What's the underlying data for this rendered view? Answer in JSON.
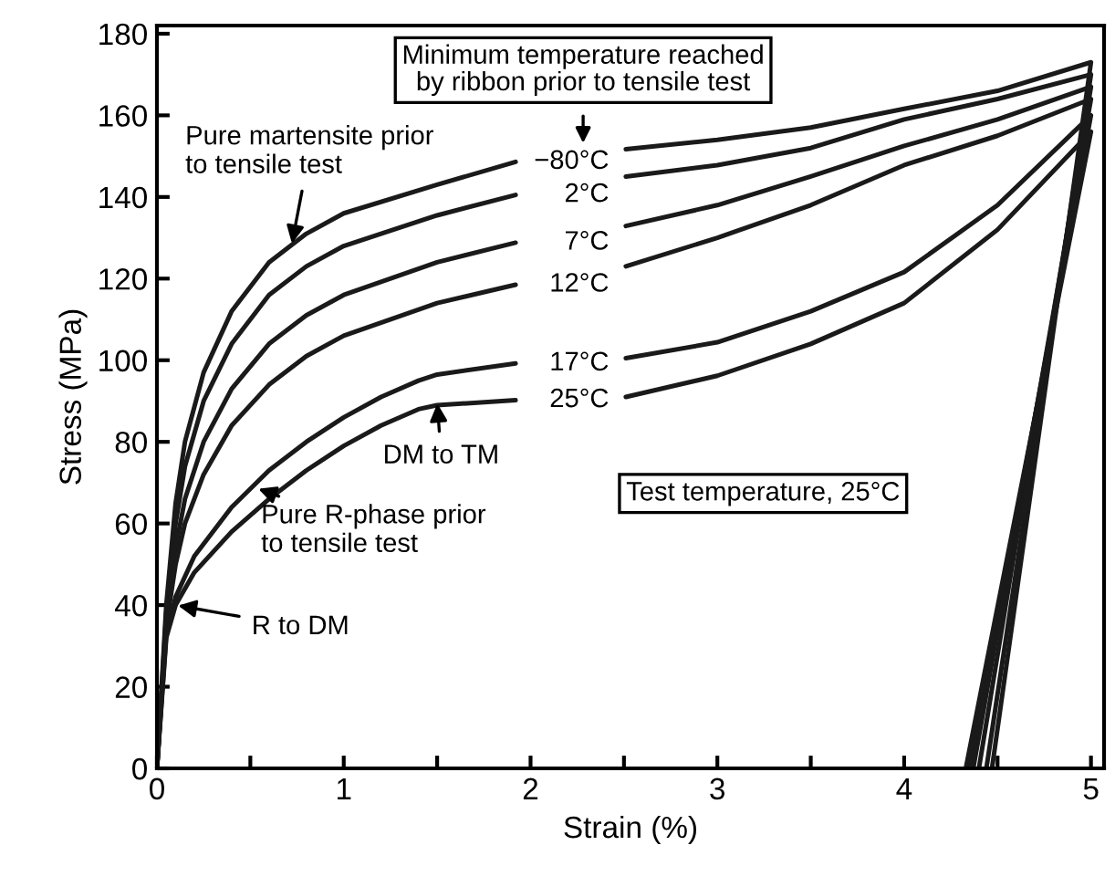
{
  "chart_data": {
    "type": "line",
    "xlabel": "Strain (%)",
    "ylabel": "Stress (MPa)",
    "xlim": [
      0,
      5.07
    ],
    "ylim": [
      0,
      182
    ],
    "xticks": [
      0,
      {
        "value": 0.5,
        "label": null
      },
      1,
      {
        "value": 1.5,
        "label": null
      },
      2,
      {
        "value": 2.5,
        "label": null
      },
      3,
      {
        "value": 3.5,
        "label": null
      },
      4,
      {
        "value": 4.5,
        "label": null
      },
      5
    ],
    "yticks": [
      0,
      20,
      40,
      60,
      80,
      100,
      120,
      140,
      160,
      180
    ],
    "grid": false,
    "legend": false,
    "marker": "none",
    "line_style": "solid",
    "series": [
      {
        "name": "−80°C",
        "color": "#1a1a1a",
        "x": [
          0,
          0.05,
          0.1,
          0.15,
          0.25,
          0.4,
          0.6,
          0.8,
          1.0,
          1.5,
          1.92,
          2.2,
          2.51,
          3,
          3.5,
          4,
          4.5,
          5,
          4.47
        ],
        "values": [
          0,
          40,
          65,
          80,
          97,
          112,
          124,
          131,
          136,
          143,
          148.6,
          null,
          151.7,
          154,
          157,
          161.6,
          166,
          173,
          0
        ]
      },
      {
        "name": "2°C",
        "color": "#1a1a1a",
        "x": [
          0,
          0.05,
          0.1,
          0.15,
          0.25,
          0.4,
          0.6,
          0.8,
          1.0,
          1.5,
          1.92,
          2.2,
          2.51,
          3,
          3.5,
          4,
          4.5,
          5,
          4.44
        ],
        "values": [
          0,
          38,
          60,
          74,
          90,
          104,
          116,
          123,
          128,
          135.5,
          140.5,
          null,
          145,
          147.8,
          152,
          159,
          164,
          170,
          0
        ]
      },
      {
        "name": "7°C",
        "color": "#1a1a1a",
        "x": [
          0,
          0.05,
          0.1,
          0.15,
          0.25,
          0.4,
          0.6,
          0.8,
          1.0,
          1.5,
          1.92,
          2.2,
          2.51,
          3,
          3.5,
          4,
          4.5,
          5,
          4.4
        ],
        "values": [
          0,
          36,
          54,
          66,
          80,
          93,
          104,
          111,
          116,
          124,
          128.8,
          null,
          132.9,
          138,
          145,
          152.5,
          159,
          167,
          0
        ]
      },
      {
        "name": "12°C",
        "color": "#1a1a1a",
        "x": [
          0,
          0.05,
          0.1,
          0.15,
          0.25,
          0.4,
          0.6,
          0.8,
          1.0,
          1.5,
          1.92,
          2.2,
          2.51,
          3,
          3.5,
          4,
          4.5,
          5,
          4.37
        ],
        "values": [
          0,
          35,
          50,
          60,
          72,
          84,
          94,
          101,
          106,
          114,
          118.5,
          null,
          123,
          130,
          138,
          147.8,
          155,
          164,
          0
        ]
      },
      {
        "name": "17°C",
        "color": "#1a1a1a",
        "x": [
          0,
          0.05,
          0.1,
          0.2,
          0.4,
          0.6,
          0.8,
          1.0,
          1.2,
          1.4,
          1.5,
          1.92,
          2.2,
          2.51,
          3,
          3.5,
          4,
          4.5,
          5,
          4.35
        ],
        "values": [
          0,
          33,
          42,
          52,
          64,
          73,
          80,
          86,
          91,
          95,
          96.5,
          99.2,
          null,
          100.5,
          104.4,
          112,
          121.6,
          138,
          160,
          0
        ]
      },
      {
        "name": "25°C",
        "color": "#1a1a1a",
        "x": [
          0,
          0.05,
          0.1,
          0.2,
          0.4,
          0.6,
          0.8,
          1.0,
          1.2,
          1.4,
          1.5,
          1.92,
          2.2,
          2.51,
          3,
          3.5,
          4,
          4.5,
          5,
          4.33
        ],
        "values": [
          0,
          32,
          40,
          48,
          58,
          66,
          73,
          79,
          84,
          88,
          89,
          90.2,
          null,
          91,
          96.2,
          104,
          114,
          132,
          156,
          0
        ]
      }
    ],
    "annotations": [
      "Minimum temperature reached\nby ribbon prior to tensile test",
      {
        "text": "Pure martensite prior\nto tensile test",
        "x": 0.72,
        "y": 128
      },
      {
        "text": "DM to TM",
        "x": 1.5,
        "y": 90
      },
      {
        "text": "Pure R-phase prior\nto tensile test",
        "x": 0.53,
        "y": 68.7
      },
      {
        "text": "R to DM",
        "x": 0.1,
        "y": 40
      },
      "Test temperature, 25°C"
    ]
  }
}
